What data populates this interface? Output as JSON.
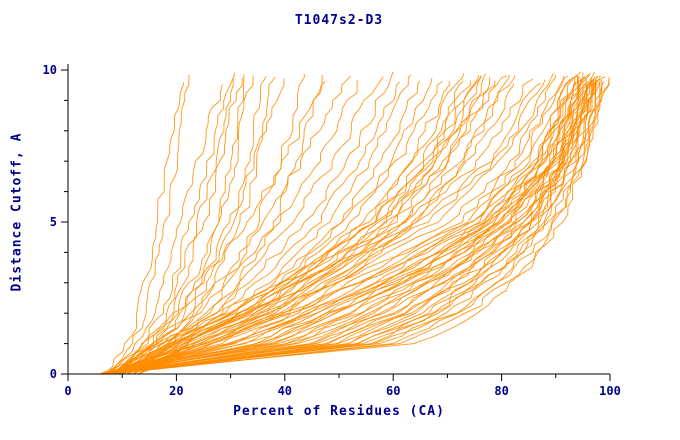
{
  "colors": {
    "background": "#ffffff",
    "curve": "#ff8c00",
    "axis": "#000000",
    "text": "#00008b"
  },
  "chart_data": {
    "type": "line",
    "title": "T1047s2-D3",
    "xlabel": "Percent of Residues (CA)",
    "ylabel": "Distance Cutoff, A",
    "xlim": [
      0,
      100
    ],
    "ylim": [
      0,
      10
    ],
    "x_major_ticks": [
      0,
      20,
      40,
      60,
      80,
      100
    ],
    "x_minor_step": 10,
    "y_major_ticks": [
      0,
      5,
      10
    ],
    "y_minor_step": 1,
    "grid": false,
    "legend": "none",
    "line_color": "#ff8c00",
    "anchor_cutoffs": [
      0,
      1,
      2,
      3.5,
      5,
      7,
      10
    ],
    "curves": [
      [
        7,
        11,
        13,
        15,
        16,
        18,
        21
      ],
      [
        8,
        12,
        14,
        16,
        18,
        20,
        22
      ],
      [
        7,
        13,
        16,
        18,
        20,
        24,
        29
      ],
      [
        9,
        14,
        17,
        20,
        22,
        26,
        30
      ],
      [
        8,
        15,
        18,
        21,
        24,
        27,
        31
      ],
      [
        10,
        16,
        19,
        22,
        25,
        28,
        32
      ],
      [
        9,
        15,
        20,
        24,
        27,
        30,
        33
      ],
      [
        11,
        17,
        21,
        25,
        28,
        31,
        34
      ],
      [
        10,
        18,
        23,
        27,
        30,
        33,
        36
      ],
      [
        12,
        19,
        24,
        28,
        32,
        35,
        38
      ],
      [
        9,
        16,
        22,
        26,
        30,
        34,
        40
      ],
      [
        11,
        20,
        26,
        31,
        35,
        39,
        44
      ],
      [
        13,
        22,
        28,
        33,
        38,
        42,
        47
      ],
      [
        8,
        14,
        20,
        27,
        33,
        40,
        48
      ],
      [
        9,
        16,
        23,
        30,
        36,
        43,
        52
      ],
      [
        7,
        15,
        24,
        32,
        39,
        46,
        55
      ],
      [
        10,
        18,
        26,
        34,
        41,
        49,
        58
      ],
      [
        8,
        17,
        27,
        36,
        44,
        52,
        60
      ],
      [
        11,
        20,
        29,
        38,
        46,
        54,
        62
      ],
      [
        9,
        19,
        30,
        40,
        48,
        56,
        64
      ],
      [
        12,
        22,
        32,
        42,
        50,
        58,
        66
      ],
      [
        10,
        21,
        33,
        43,
        52,
        60,
        68
      ],
      [
        8,
        18,
        31,
        41,
        51,
        61,
        70
      ],
      [
        11,
        23,
        35,
        45,
        54,
        63,
        72
      ],
      [
        9,
        20,
        34,
        46,
        56,
        65,
        74
      ],
      [
        12,
        24,
        37,
        48,
        58,
        67,
        76
      ],
      [
        10,
        22,
        36,
        49,
        59,
        68,
        77
      ],
      [
        8,
        16,
        28,
        44,
        55,
        64,
        73
      ],
      [
        13,
        25,
        38,
        50,
        60,
        69,
        78
      ],
      [
        9,
        17,
        29,
        45,
        57,
        66,
        75
      ],
      [
        11,
        21,
        34,
        47,
        58,
        68,
        79
      ],
      [
        10,
        19,
        32,
        44,
        56,
        67,
        77
      ],
      [
        12,
        26,
        40,
        52,
        62,
        70,
        80
      ],
      [
        9,
        18,
        33,
        48,
        60,
        70,
        81
      ],
      [
        13,
        27,
        42,
        54,
        64,
        73,
        82
      ],
      [
        10,
        20,
        35,
        50,
        62,
        72,
        83
      ],
      [
        11,
        24,
        39,
        53,
        64,
        74,
        84
      ],
      [
        6,
        20,
        30,
        45,
        62,
        76,
        86
      ],
      [
        7,
        22,
        32,
        48,
        65,
        78,
        88
      ],
      [
        6,
        24,
        35,
        50,
        66,
        79,
        89
      ],
      [
        8,
        26,
        37,
        52,
        68,
        80,
        90
      ],
      [
        7,
        28,
        39,
        54,
        70,
        82,
        91
      ],
      [
        6,
        30,
        42,
        57,
        72,
        83,
        92
      ],
      [
        8,
        32,
        44,
        59,
        73,
        84,
        92
      ],
      [
        7,
        34,
        46,
        61,
        75,
        85,
        93
      ],
      [
        6,
        36,
        48,
        63,
        76,
        86,
        93
      ],
      [
        8,
        38,
        50,
        65,
        77,
        87,
        94
      ],
      [
        7,
        40,
        52,
        66,
        78,
        87,
        94
      ],
      [
        6,
        42,
        54,
        68,
        79,
        88,
        95
      ],
      [
        8,
        44,
        56,
        69,
        80,
        89,
        95
      ],
      [
        7,
        46,
        58,
        71,
        81,
        89,
        96
      ],
      [
        6,
        48,
        60,
        72,
        82,
        90,
        96
      ],
      [
        8,
        50,
        62,
        74,
        83,
        91,
        97
      ],
      [
        7,
        52,
        64,
        75,
        84,
        91,
        97
      ],
      [
        6,
        54,
        66,
        77,
        85,
        92,
        98
      ],
      [
        8,
        56,
        68,
        78,
        86,
        92,
        98
      ],
      [
        7,
        45,
        60,
        74,
        84,
        92,
        97
      ],
      [
        6,
        35,
        50,
        68,
        80,
        90,
        96
      ],
      [
        8,
        30,
        45,
        64,
        78,
        88,
        95
      ],
      [
        7,
        25,
        40,
        60,
        76,
        87,
        94
      ],
      [
        6,
        33,
        48,
        66,
        80,
        89,
        96
      ],
      [
        8,
        37,
        52,
        70,
        82,
        90,
        97
      ],
      [
        7,
        41,
        56,
        72,
        83,
        91,
        97
      ],
      [
        6,
        47,
        62,
        76,
        85,
        92,
        98
      ],
      [
        8,
        51,
        65,
        78,
        86,
        93,
        98
      ],
      [
        7,
        55,
        68,
        80,
        87,
        93,
        99
      ],
      [
        6,
        58,
        70,
        81,
        88,
        94,
        99
      ],
      [
        8,
        60,
        72,
        82,
        89,
        94,
        99
      ],
      [
        7,
        62,
        74,
        84,
        90,
        95,
        100
      ],
      [
        6,
        64,
        76,
        85,
        91,
        95,
        100
      ],
      [
        8,
        57,
        71,
        83,
        90,
        95,
        99
      ],
      [
        7,
        53,
        67,
        80,
        88,
        94,
        99
      ],
      [
        6,
        49,
        63,
        77,
        86,
        93,
        98
      ],
      [
        8,
        43,
        58,
        74,
        85,
        92,
        98
      ],
      [
        7,
        39,
        54,
        71,
        83,
        91,
        97
      ],
      [
        6,
        29,
        44,
        63,
        78,
        89,
        96
      ],
      [
        8,
        23,
        36,
        56,
        74,
        86,
        95
      ],
      [
        7,
        27,
        41,
        60,
        77,
        88,
        96
      ],
      [
        6,
        31,
        46,
        65,
        80,
        90,
        97
      ],
      [
        8,
        35,
        49,
        68,
        81,
        91,
        98
      ]
    ]
  }
}
